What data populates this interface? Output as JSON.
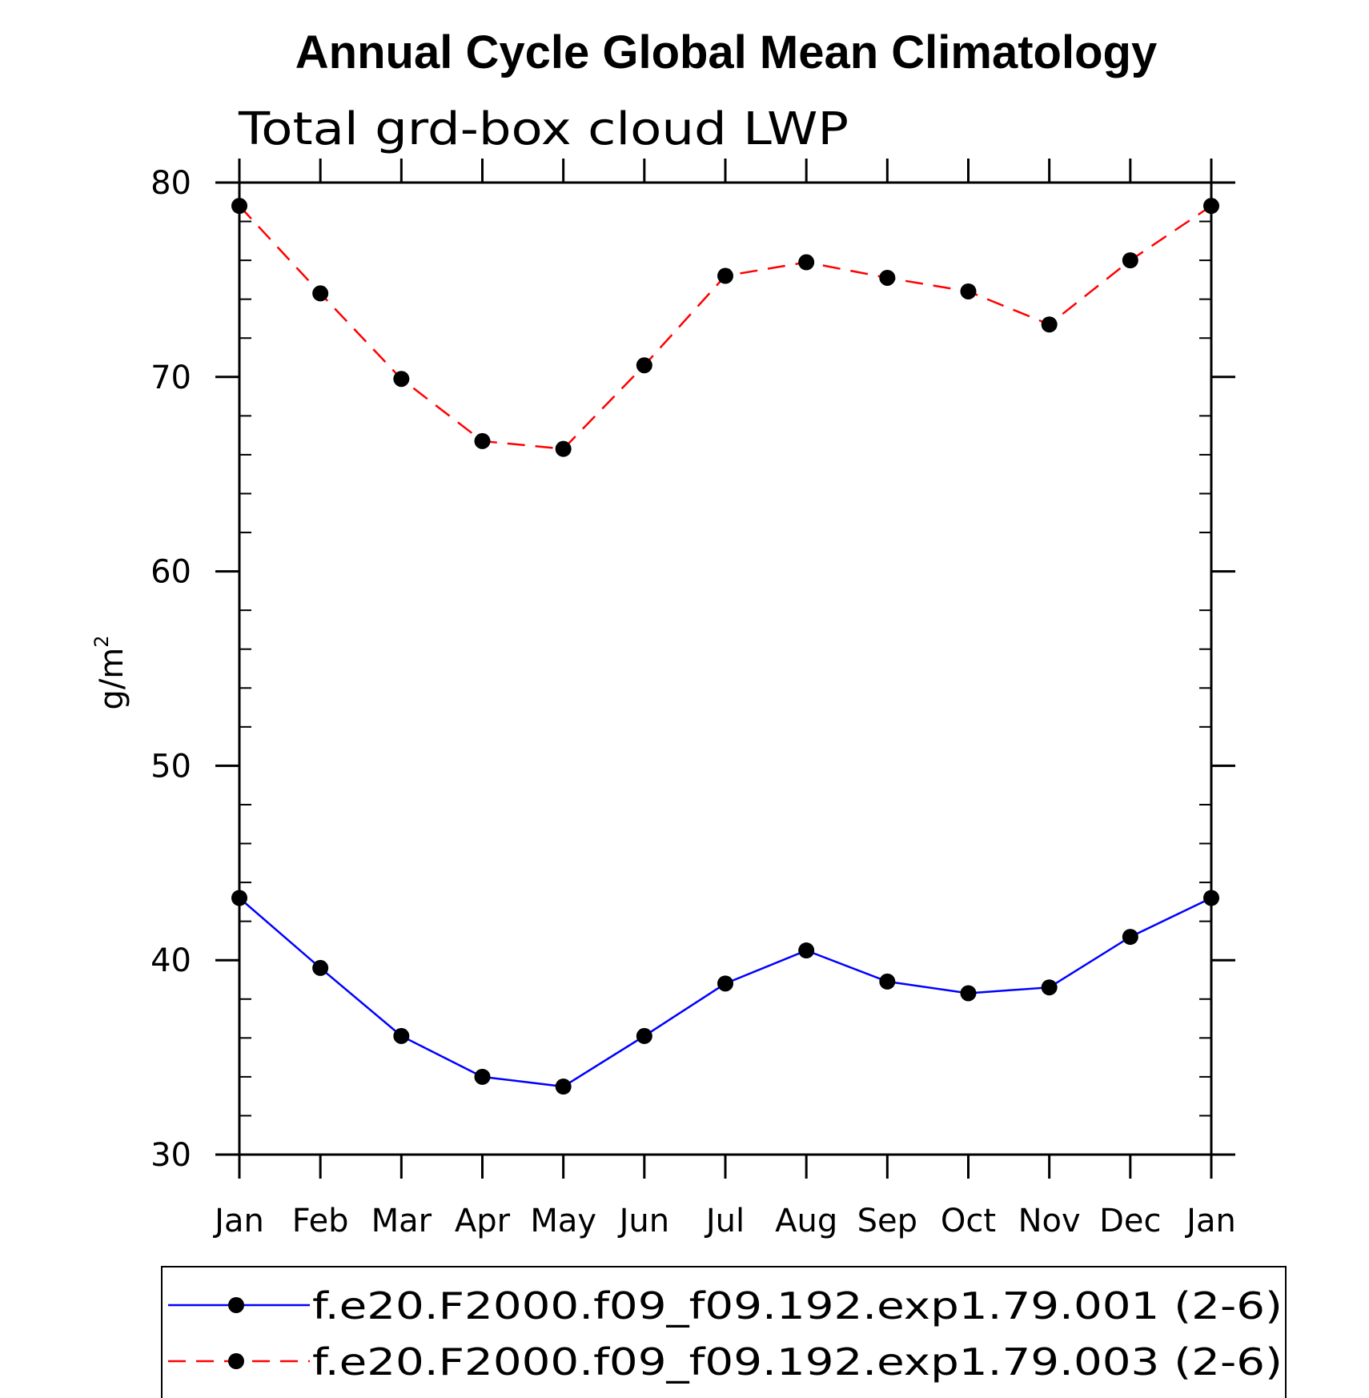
{
  "chart_data": {
    "type": "line",
    "title": "Annual Cycle Global Mean Climatology",
    "subtitle": "Total grd-box cloud LWP",
    "xlabel": "",
    "ylabel": "g/m",
    "ylabel_superscript": "2",
    "categories": [
      "Jan",
      "Feb",
      "Mar",
      "Apr",
      "May",
      "Jun",
      "Jul",
      "Aug",
      "Sep",
      "Oct",
      "Nov",
      "Dec",
      "Jan"
    ],
    "ylim": [
      30,
      80
    ],
    "yticks": [
      30,
      40,
      50,
      60,
      70,
      80
    ],
    "ytick_labels": [
      "30",
      "40",
      "50",
      "60",
      "70",
      "80"
    ],
    "grid": false,
    "legend_position": "bottom",
    "series": [
      {
        "name": "f.e20.F2000.f09_f09.192.exp1.79.001 (2-6)",
        "color": "#0000ff",
        "line_style": "solid",
        "marker": "filled-circle",
        "values": [
          43.2,
          39.6,
          36.1,
          34.0,
          33.5,
          36.1,
          38.8,
          40.5,
          38.9,
          38.3,
          38.6,
          41.2,
          43.2
        ]
      },
      {
        "name": "f.e20.F2000.f09_f09.192.exp1.79.003 (2-6)",
        "color": "#ff0000",
        "line_style": "dashed",
        "marker": "filled-circle",
        "values": [
          78.8,
          74.3,
          69.9,
          66.7,
          66.3,
          70.6,
          75.2,
          75.9,
          75.1,
          74.4,
          72.7,
          76.0,
          78.8
        ]
      }
    ]
  }
}
